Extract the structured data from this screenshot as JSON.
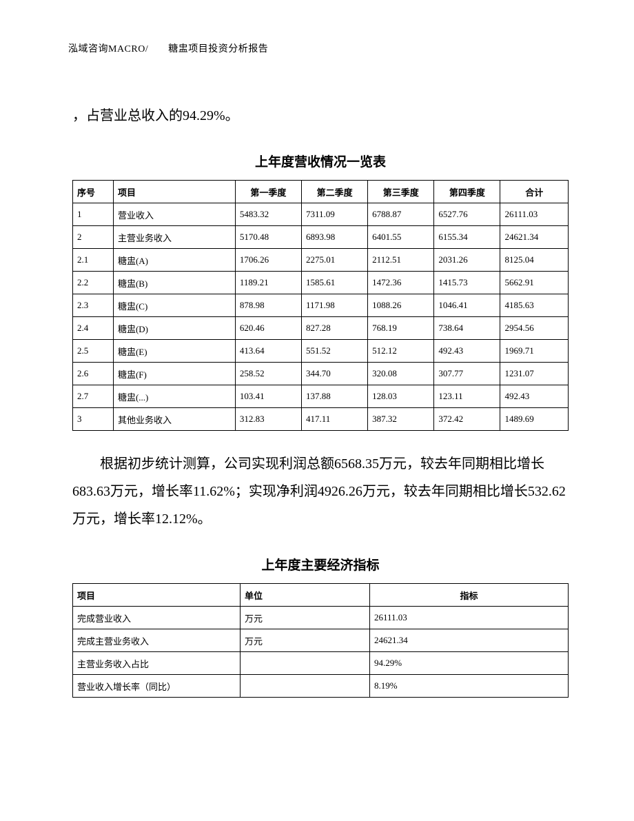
{
  "header_text": "泓域咨询MACRO/　　糖盅项目投资分析报告",
  "para_top": "，占营业总收入的94.29%。",
  "table1_title": "上年度营收情况一览表",
  "table1": {
    "columns": [
      "序号",
      "项目",
      "第一季度",
      "第二季度",
      "第三季度",
      "第四季度",
      "合计"
    ],
    "rows": [
      [
        "1",
        "营业收入",
        "5483.32",
        "7311.09",
        "6788.87",
        "6527.76",
        "26111.03"
      ],
      [
        "2",
        "主营业务收入",
        "5170.48",
        "6893.98",
        "6401.55",
        "6155.34",
        "24621.34"
      ],
      [
        "2.1",
        "糖盅(A)",
        "1706.26",
        "2275.01",
        "2112.51",
        "2031.26",
        "8125.04"
      ],
      [
        "2.2",
        "糖盅(B)",
        "1189.21",
        "1585.61",
        "1472.36",
        "1415.73",
        "5662.91"
      ],
      [
        "2.3",
        "糖盅(C)",
        "878.98",
        "1171.98",
        "1088.26",
        "1046.41",
        "4185.63"
      ],
      [
        "2.4",
        "糖盅(D)",
        "620.46",
        "827.28",
        "768.19",
        "738.64",
        "2954.56"
      ],
      [
        "2.5",
        "糖盅(E)",
        "413.64",
        "551.52",
        "512.12",
        "492.43",
        "1969.71"
      ],
      [
        "2.6",
        "糖盅(F)",
        "258.52",
        "344.70",
        "320.08",
        "307.77",
        "1231.07"
      ],
      [
        "2.7",
        "糖盅(...)",
        "103.41",
        "137.88",
        "128.03",
        "123.11",
        "492.43"
      ],
      [
        "3",
        "其他业务收入",
        "312.83",
        "417.11",
        "387.32",
        "372.42",
        "1489.69"
      ]
    ]
  },
  "para_mid": "根据初步统计测算，公司实现利润总额6568.35万元，较去年同期相比增长683.63万元，增长率11.62%；实现净利润4926.26万元，较去年同期相比增长532.62万元，增长率12.12%。",
  "table2_title": "上年度主要经济指标",
  "table2": {
    "columns": [
      "项目",
      "单位",
      "指标"
    ],
    "rows": [
      [
        "完成营业收入",
        "万元",
        "26111.03"
      ],
      [
        "完成主营业务收入",
        "万元",
        "24621.34"
      ],
      [
        "主营业务收入占比",
        "",
        "94.29%"
      ],
      [
        "营业收入增长率（同比）",
        "",
        "8.19%"
      ]
    ]
  }
}
